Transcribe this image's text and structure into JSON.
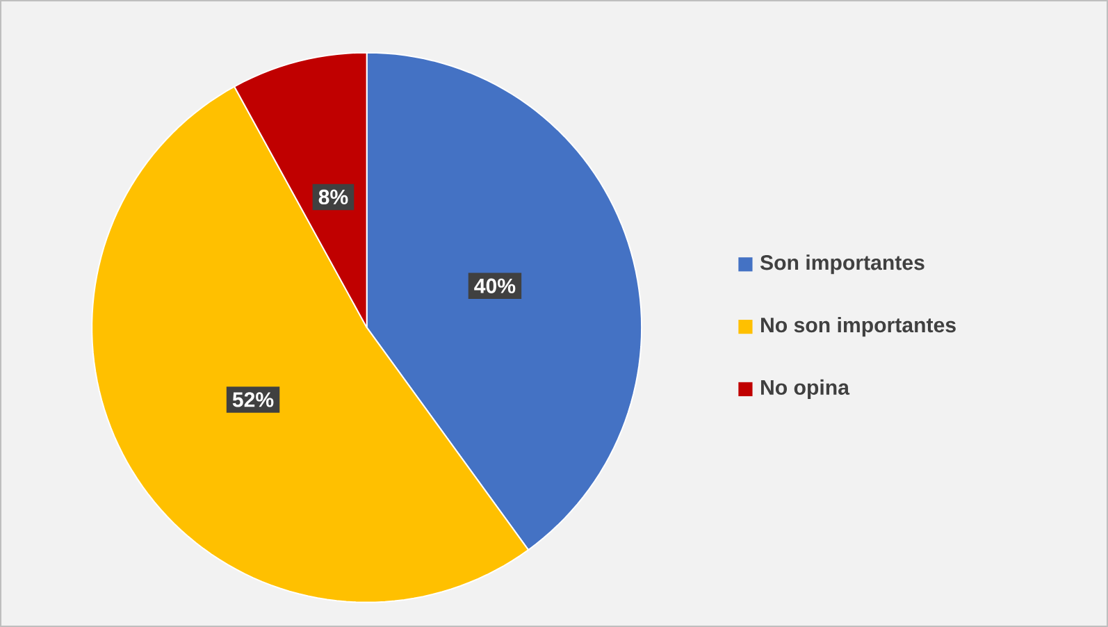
{
  "chart_data": {
    "type": "pie",
    "categories": [
      "Son importantes",
      "No son importantes",
      "No opina"
    ],
    "values": [
      40,
      52,
      8
    ],
    "colors": [
      "#4472c4",
      "#ffc000",
      "#c00000"
    ],
    "value_labels": [
      "40%",
      "52%",
      "8%"
    ],
    "legend": "right"
  }
}
